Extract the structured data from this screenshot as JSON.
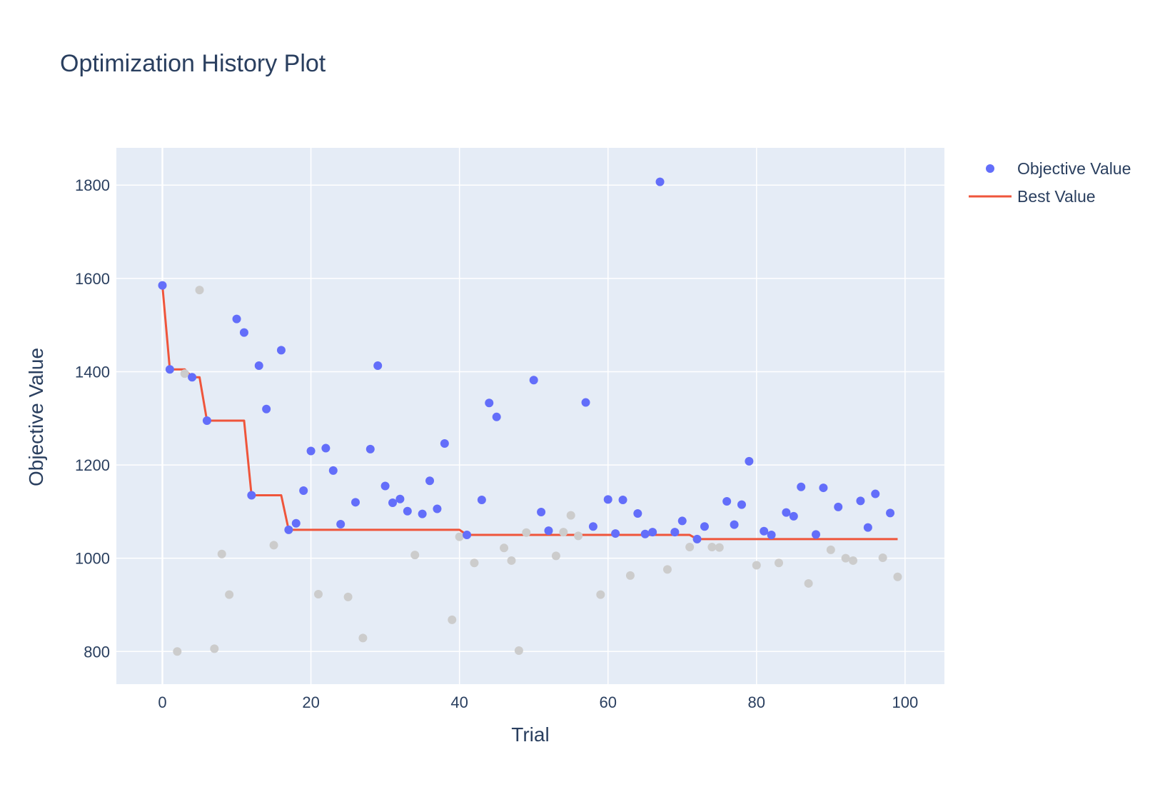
{
  "chart_data": {
    "type": "scatter",
    "title": "Optimization History Plot",
    "xlabel": "Trial",
    "ylabel": "Objective Value",
    "xlim": [
      -6.2,
      105.3
    ],
    "ylim": [
      730,
      1880
    ],
    "x_ticks": [
      0,
      20,
      40,
      60,
      80,
      100
    ],
    "y_ticks": [
      800,
      1000,
      1200,
      1400,
      1600,
      1800
    ],
    "grid": true,
    "legend_position": "top-right",
    "background": "#e5ecf6",
    "series": [
      {
        "name": "Objective Value",
        "kind": "markers",
        "color": "#636efa",
        "points": [
          [
            0,
            1585
          ],
          [
            1,
            1405
          ],
          [
            4,
            1388
          ],
          [
            6,
            1295
          ],
          [
            10,
            1513
          ],
          [
            11,
            1484
          ],
          [
            12,
            1135
          ],
          [
            13,
            1413
          ],
          [
            14,
            1320
          ],
          [
            16,
            1446
          ],
          [
            17,
            1061
          ],
          [
            18,
            1075
          ],
          [
            19,
            1145
          ],
          [
            20,
            1230
          ],
          [
            22,
            1236
          ],
          [
            23,
            1188
          ],
          [
            24,
            1073
          ],
          [
            26,
            1120
          ],
          [
            28,
            1234
          ],
          [
            29,
            1413
          ],
          [
            30,
            1155
          ],
          [
            31,
            1119
          ],
          [
            32,
            1127
          ],
          [
            33,
            1101
          ],
          [
            35,
            1095
          ],
          [
            36,
            1166
          ],
          [
            37,
            1106
          ],
          [
            38,
            1246
          ],
          [
            41,
            1050
          ],
          [
            43,
            1125
          ],
          [
            44,
            1333
          ],
          [
            45,
            1303
          ],
          [
            50,
            1382
          ],
          [
            51,
            1099
          ],
          [
            52,
            1059
          ],
          [
            57,
            1334
          ],
          [
            58,
            1068
          ],
          [
            60,
            1126
          ],
          [
            61,
            1053
          ],
          [
            62,
            1125
          ],
          [
            64,
            1096
          ],
          [
            65,
            1052
          ],
          [
            66,
            1056
          ],
          [
            67,
            1807
          ],
          [
            69,
            1056
          ],
          [
            70,
            1080
          ],
          [
            72,
            1041
          ],
          [
            73,
            1068
          ],
          [
            76,
            1122
          ],
          [
            77,
            1072
          ],
          [
            78,
            1115
          ],
          [
            79,
            1208
          ],
          [
            81,
            1058
          ],
          [
            82,
            1050
          ],
          [
            84,
            1098
          ],
          [
            85,
            1090
          ],
          [
            86,
            1153
          ],
          [
            88,
            1051
          ],
          [
            89,
            1151
          ],
          [
            91,
            1110
          ],
          [
            94,
            1123
          ],
          [
            95,
            1066
          ],
          [
            96,
            1138
          ],
          [
            98,
            1097
          ]
        ]
      },
      {
        "name": "",
        "kind": "markers",
        "color": "#cccccc",
        "points": [
          [
            2,
            800
          ],
          [
            3,
            1396
          ],
          [
            5,
            1575
          ],
          [
            7,
            806
          ],
          [
            8,
            1009
          ],
          [
            9,
            922
          ],
          [
            15,
            1028
          ],
          [
            21,
            923
          ],
          [
            25,
            917
          ],
          [
            27,
            829
          ],
          [
            34,
            1007
          ],
          [
            39,
            868
          ],
          [
            40,
            1046
          ],
          [
            42,
            990
          ],
          [
            46,
            1022
          ],
          [
            47,
            995
          ],
          [
            48,
            802
          ],
          [
            49,
            1055
          ],
          [
            53,
            1005
          ],
          [
            54,
            1056
          ],
          [
            55,
            1092
          ],
          [
            56,
            1048
          ],
          [
            59,
            922
          ],
          [
            63,
            963
          ],
          [
            68,
            976
          ],
          [
            71,
            1024
          ],
          [
            74,
            1024
          ],
          [
            75,
            1023
          ],
          [
            80,
            985
          ],
          [
            83,
            990
          ],
          [
            87,
            946
          ],
          [
            90,
            1018
          ],
          [
            92,
            1000
          ],
          [
            93,
            995
          ],
          [
            97,
            1001
          ],
          [
            99,
            960
          ]
        ]
      },
      {
        "name": "Best Value",
        "kind": "line",
        "color": "#ef553b",
        "values": [
          1585,
          1405,
          1405,
          1405,
          1388,
          1388,
          1295,
          1295,
          1295,
          1295,
          1295,
          1295,
          1135,
          1135,
          1135,
          1135,
          1135,
          1061,
          1061,
          1061,
          1061,
          1061,
          1061,
          1061,
          1061,
          1061,
          1061,
          1061,
          1061,
          1061,
          1061,
          1061,
          1061,
          1061,
          1061,
          1061,
          1061,
          1061,
          1061,
          1061,
          1061,
          1050,
          1050,
          1050,
          1050,
          1050,
          1050,
          1050,
          1050,
          1050,
          1050,
          1050,
          1050,
          1050,
          1050,
          1050,
          1050,
          1050,
          1050,
          1050,
          1050,
          1050,
          1050,
          1050,
          1050,
          1050,
          1050,
          1050,
          1050,
          1050,
          1050,
          1050,
          1041,
          1041,
          1041,
          1041,
          1041,
          1041,
          1041,
          1041,
          1041,
          1041,
          1041,
          1041,
          1041,
          1041,
          1041,
          1041,
          1041,
          1041,
          1041,
          1041,
          1041,
          1041,
          1041,
          1041,
          1041,
          1041,
          1041,
          1041
        ]
      }
    ]
  }
}
